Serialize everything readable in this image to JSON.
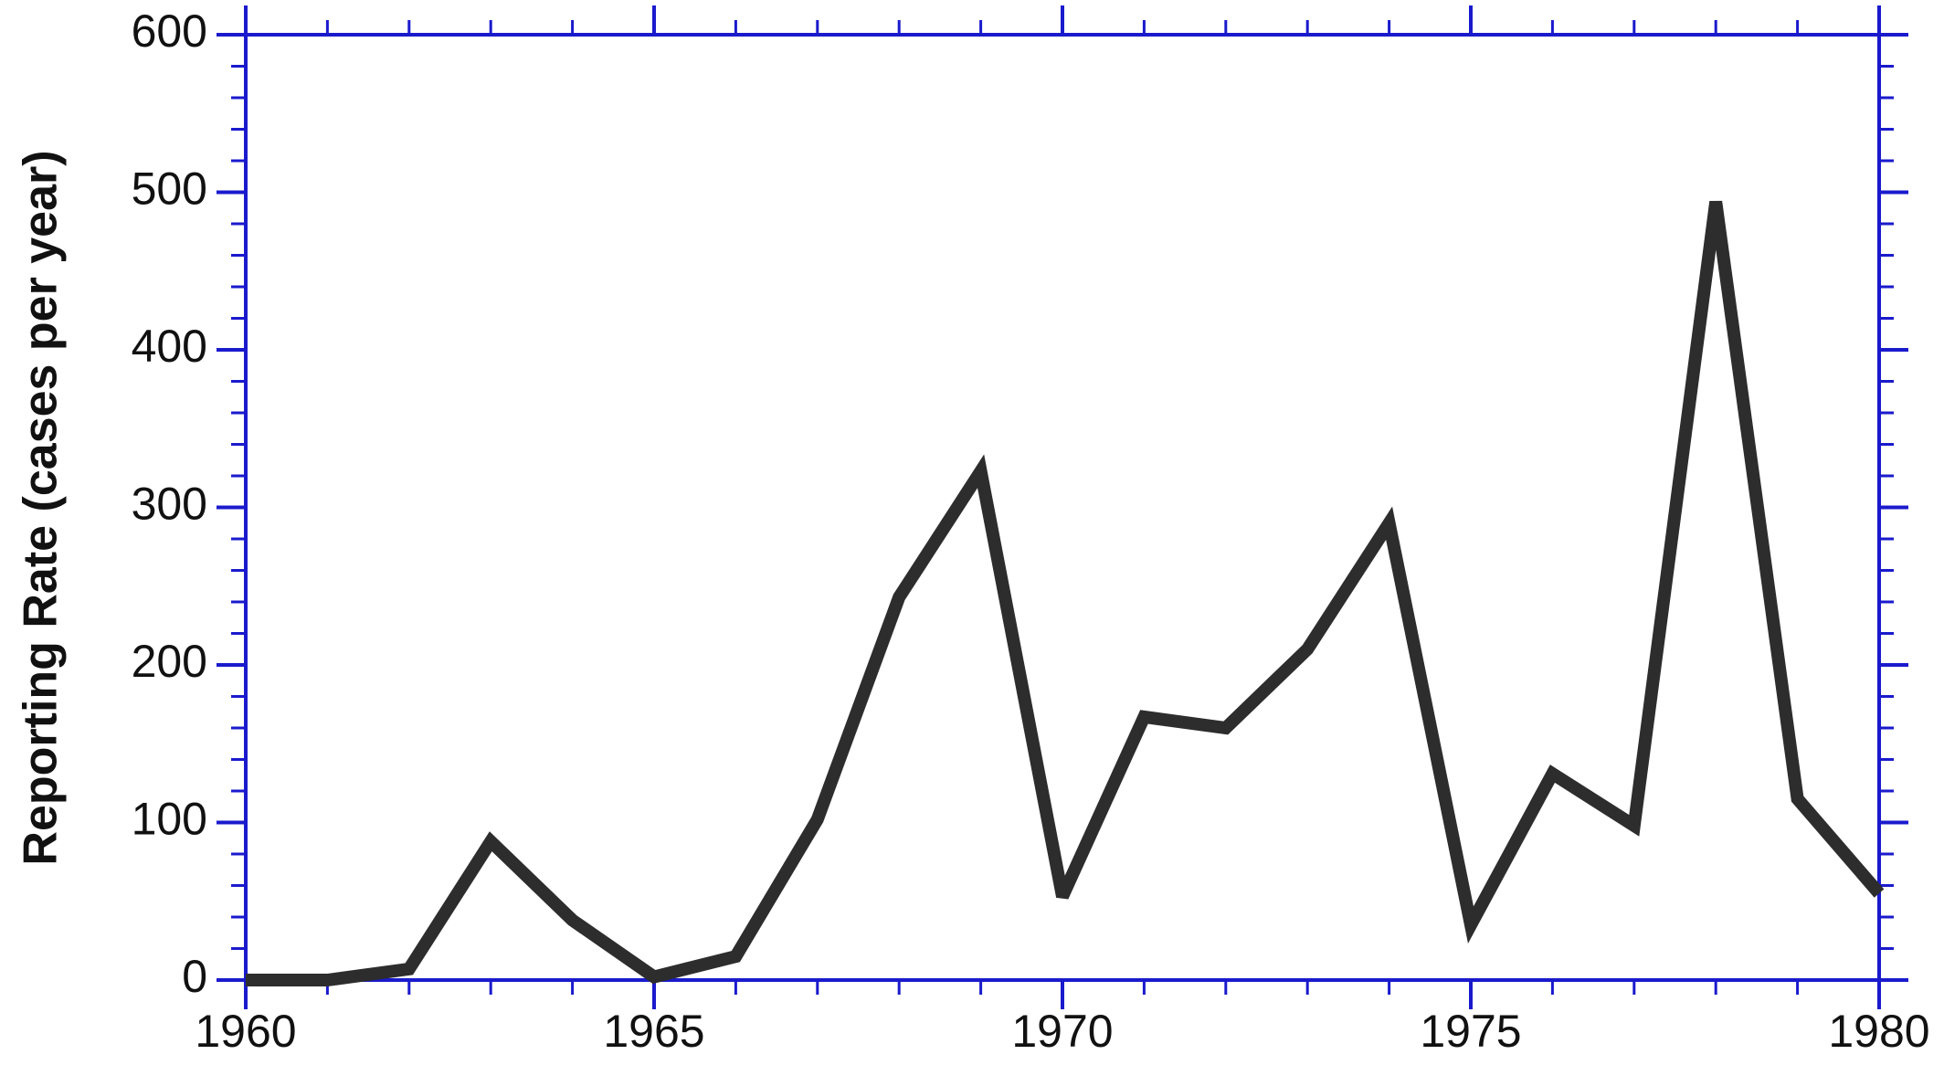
{
  "chart_data": {
    "type": "line",
    "y_label": "Reporting Rate (cases per year)",
    "x": [
      1960,
      1961,
      1962,
      1963,
      1964,
      1965,
      1966,
      1967,
      1968,
      1969,
      1970,
      1971,
      1972,
      1973,
      1974,
      1975,
      1976,
      1977,
      1978,
      1979,
      1980
    ],
    "series": [
      {
        "color": "#2d2d2d",
        "values": [
          0,
          0,
          7,
          88,
          38,
          2,
          15,
          102,
          243,
          323,
          53,
          167,
          160,
          210,
          290,
          35,
          131,
          98,
          494,
          115,
          55
        ]
      }
    ],
    "xlim": [
      1960,
      1980
    ],
    "xticks": [
      1960,
      1965,
      1970,
      1975,
      1980
    ],
    "ylim": [
      0,
      600
    ],
    "yticks": [
      0,
      100,
      200,
      300,
      400,
      500,
      600
    ],
    "axis_color": "#1a1acd"
  }
}
